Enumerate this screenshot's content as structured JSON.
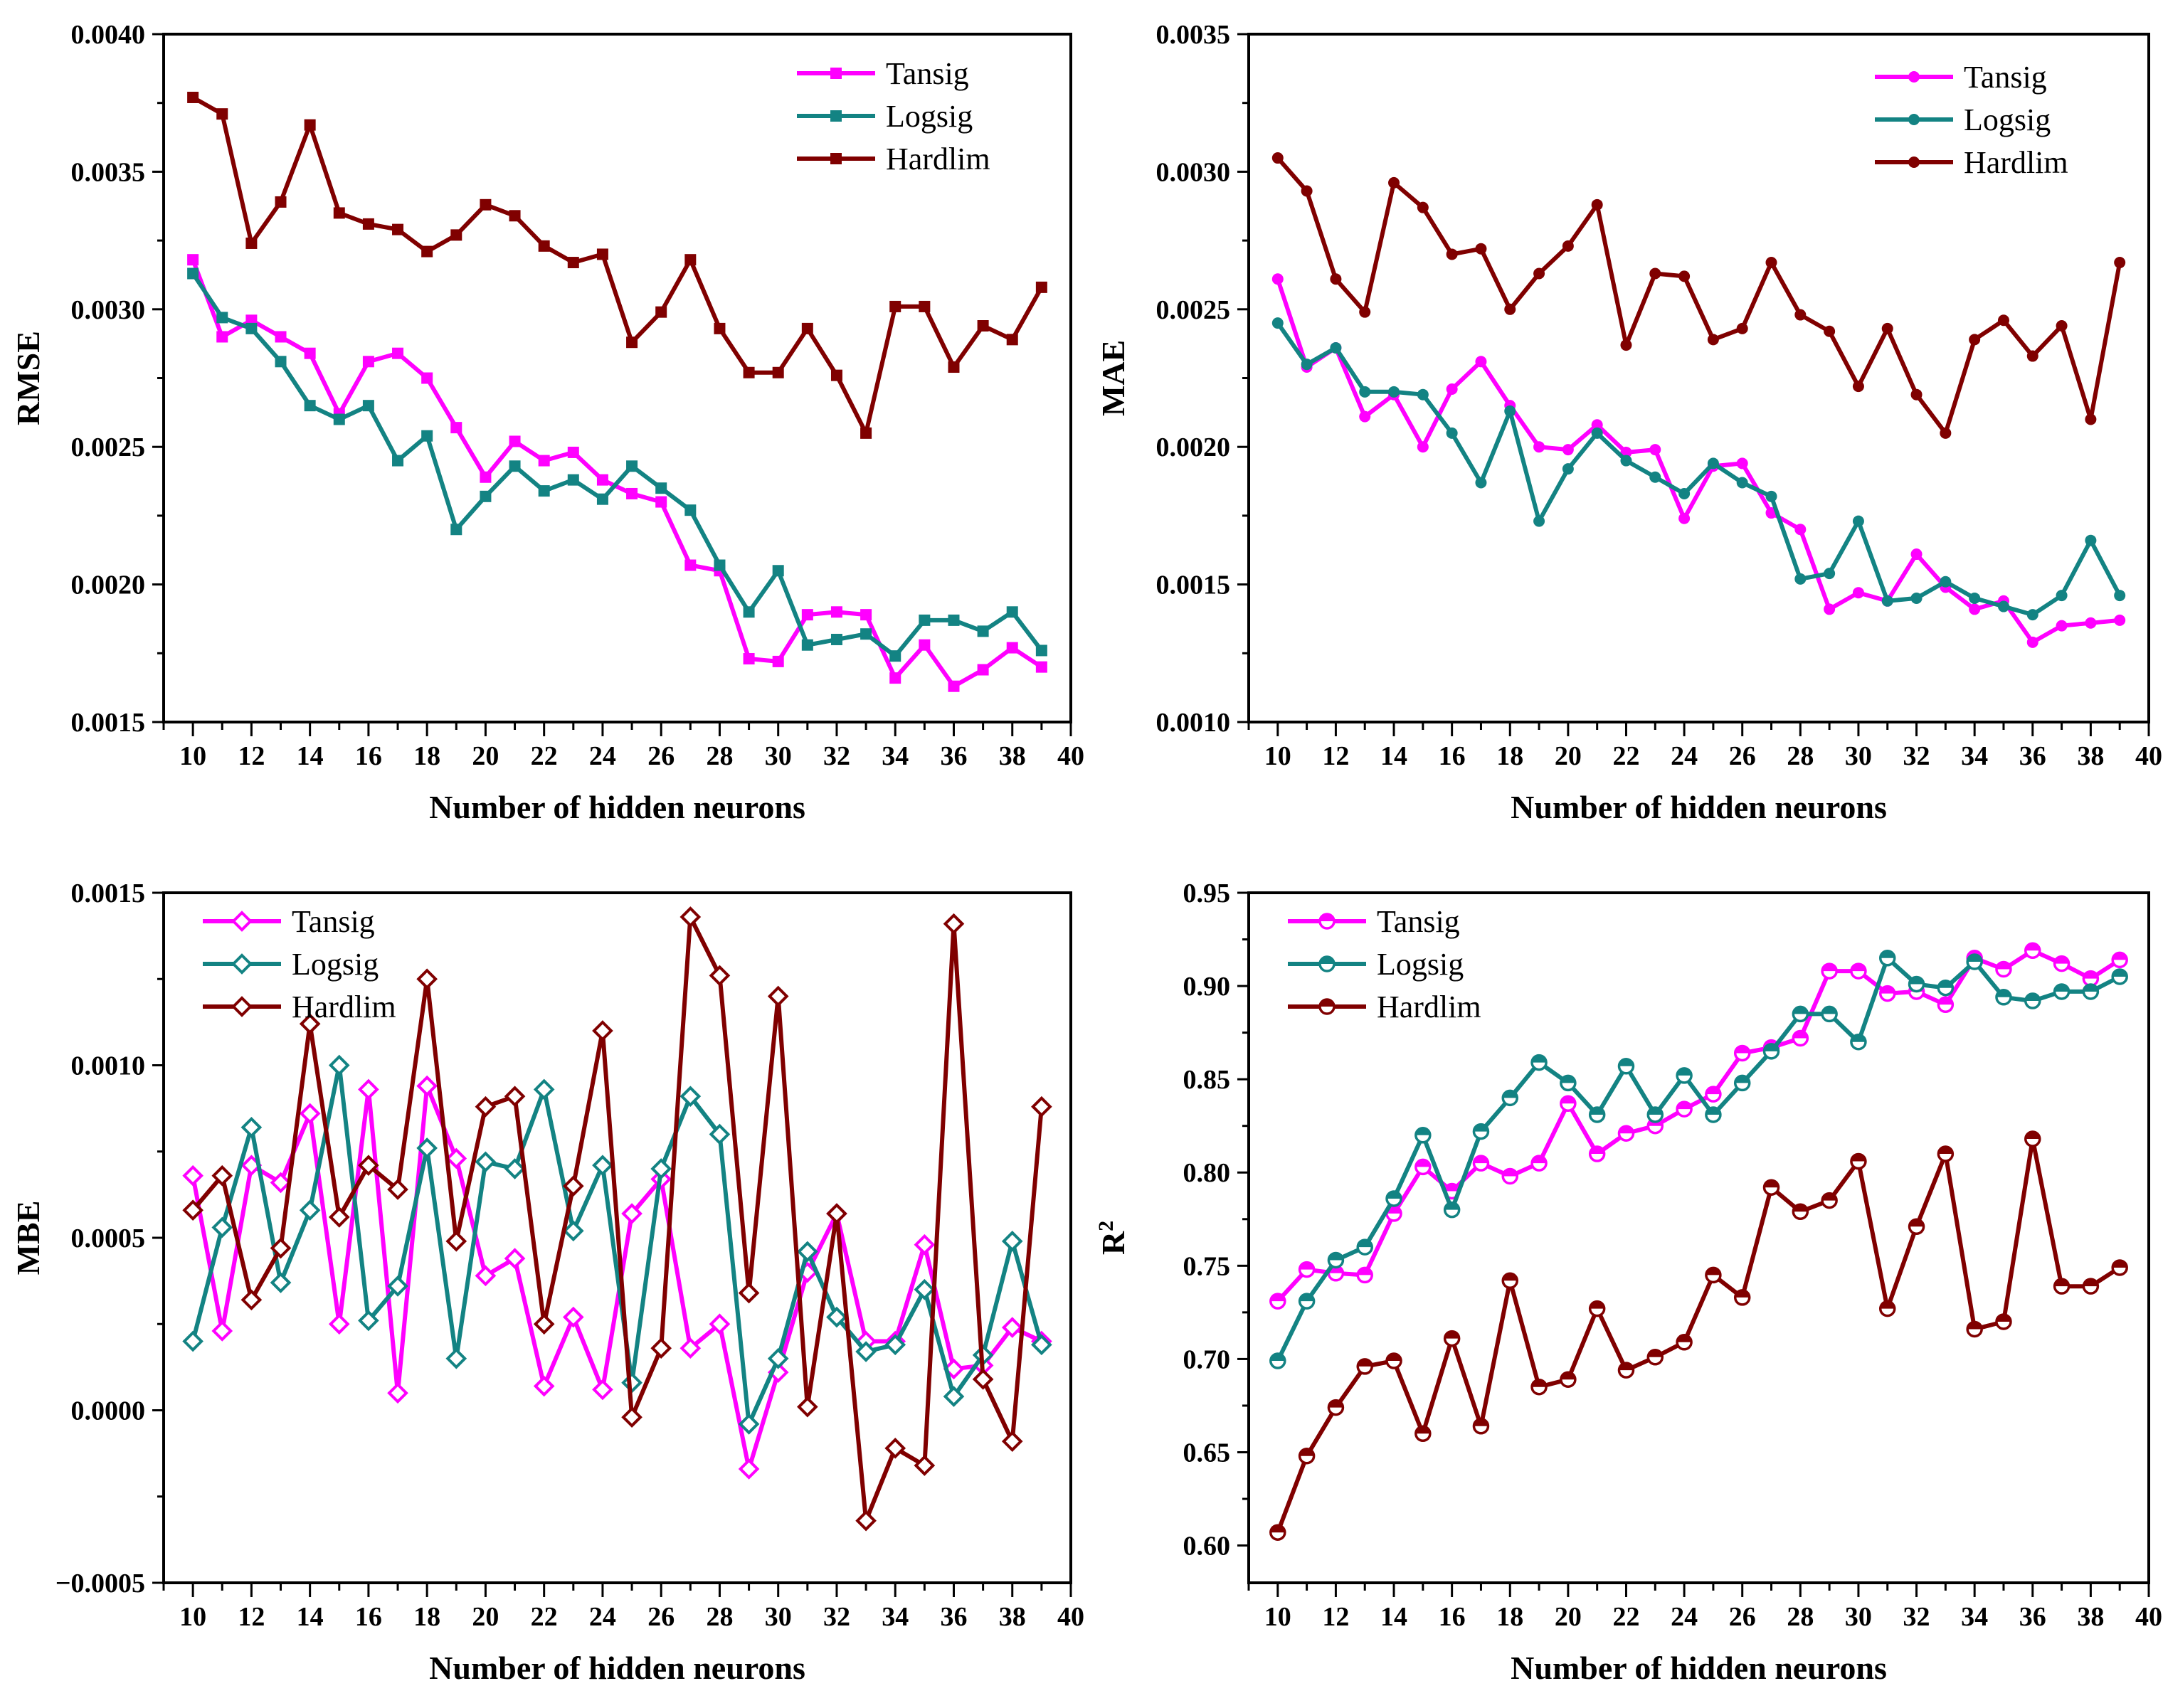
{
  "chart_data": [
    {
      "type": "line",
      "id": "rmse",
      "title": "",
      "xlabel": "Number of hidden neurons",
      "ylabel": "RMSE",
      "ylabel_sup": "",
      "xlim": [
        9,
        40
      ],
      "ylim": [
        0.0015,
        0.004
      ],
      "xticks": [
        10,
        12,
        14,
        16,
        18,
        20,
        22,
        24,
        26,
        28,
        30,
        32,
        34,
        36,
        38,
        40
      ],
      "yticks": [
        {
          "value": 0.0015,
          "label": "0.0015"
        },
        {
          "value": 0.002,
          "label": "0.0020"
        },
        {
          "value": 0.0025,
          "label": "0.0025"
        },
        {
          "value": 0.003,
          "label": "0.0030"
        },
        {
          "value": 0.0035,
          "label": "0.0035"
        },
        {
          "value": 0.004,
          "label": "0.0040"
        }
      ],
      "marker": "square",
      "legend_position": "top-right",
      "x": [
        10,
        11,
        12,
        13,
        14,
        15,
        16,
        17,
        18,
        19,
        20,
        21,
        22,
        23,
        24,
        25,
        26,
        27,
        28,
        29,
        30,
        31,
        32,
        33,
        34,
        35,
        36,
        37,
        38,
        39
      ],
      "series": [
        {
          "name": "Tansig",
          "color": "#ff00ff",
          "values": [
            0.00318,
            0.0029,
            0.00296,
            0.0029,
            0.00284,
            0.00262,
            0.00281,
            0.00284,
            0.00275,
            0.00257,
            0.00239,
            0.00252,
            0.00245,
            0.00248,
            0.00238,
            0.00233,
            0.0023,
            0.00207,
            0.00205,
            0.00173,
            0.00172,
            0.00189,
            0.0019,
            0.00189,
            0.00166,
            0.00178,
            0.00163,
            0.00169,
            0.00177,
            0.0017
          ]
        },
        {
          "name": "Logsig",
          "color": "#138383",
          "values": [
            0.00313,
            0.00297,
            0.00293,
            0.00281,
            0.00265,
            0.0026,
            0.00265,
            0.00245,
            0.00254,
            0.0022,
            0.00232,
            0.00243,
            0.00234,
            0.00238,
            0.00231,
            0.00243,
            0.00235,
            0.00227,
            0.00207,
            0.0019,
            0.00205,
            0.00178,
            0.0018,
            0.00182,
            0.00174,
            0.00187,
            0.00187,
            0.00183,
            0.0019,
            0.00176
          ]
        },
        {
          "name": "Hardlim",
          "color": "#800000",
          "values": [
            0.00377,
            0.00371,
            0.00324,
            0.00339,
            0.00367,
            0.00335,
            0.00331,
            0.00329,
            0.00321,
            0.00327,
            0.00338,
            0.00334,
            0.00323,
            0.00317,
            0.0032,
            0.00288,
            0.00299,
            0.00318,
            0.00293,
            0.00277,
            0.00277,
            0.00293,
            0.00276,
            0.00255,
            0.00301,
            0.00301,
            0.00279,
            0.00294,
            0.00289,
            0.00308
          ]
        }
      ]
    },
    {
      "type": "line",
      "id": "mae",
      "title": "",
      "xlabel": "Number of hidden neurons",
      "ylabel": "MAE",
      "ylabel_sup": "",
      "xlim": [
        9,
        40
      ],
      "ylim": [
        0.001,
        0.0035
      ],
      "xticks": [
        10,
        12,
        14,
        16,
        18,
        20,
        22,
        24,
        26,
        28,
        30,
        32,
        34,
        36,
        38,
        40
      ],
      "yticks": [
        {
          "value": 0.001,
          "label": "0.0010"
        },
        {
          "value": 0.0015,
          "label": "0.0015"
        },
        {
          "value": 0.002,
          "label": "0.0020"
        },
        {
          "value": 0.0025,
          "label": "0.0025"
        },
        {
          "value": 0.003,
          "label": "0.0030"
        },
        {
          "value": 0.0035,
          "label": "0.0035"
        }
      ],
      "marker": "circle",
      "legend_position": "top-right",
      "x": [
        10,
        11,
        12,
        13,
        14,
        15,
        16,
        17,
        18,
        19,
        20,
        21,
        22,
        23,
        24,
        25,
        26,
        27,
        28,
        29,
        30,
        31,
        32,
        33,
        34,
        35,
        36,
        37,
        38,
        39
      ],
      "series": [
        {
          "name": "Tansig",
          "color": "#ff00ff",
          "values": [
            0.00261,
            0.00229,
            0.00236,
            0.00211,
            0.00219,
            0.002,
            0.00221,
            0.00231,
            0.00215,
            0.002,
            0.00199,
            0.00208,
            0.00198,
            0.00199,
            0.00174,
            0.00193,
            0.00194,
            0.00176,
            0.0017,
            0.00141,
            0.00147,
            0.00144,
            0.00161,
            0.00149,
            0.00141,
            0.00144,
            0.00129,
            0.00135,
            0.00136,
            0.00137
          ]
        },
        {
          "name": "Logsig",
          "color": "#138383",
          "values": [
            0.00245,
            0.0023,
            0.00236,
            0.0022,
            0.0022,
            0.00219,
            0.00205,
            0.00187,
            0.00213,
            0.00173,
            0.00192,
            0.00205,
            0.00195,
            0.00189,
            0.00183,
            0.00194,
            0.00187,
            0.00182,
            0.00152,
            0.00154,
            0.00173,
            0.00144,
            0.00145,
            0.00151,
            0.00145,
            0.00142,
            0.00139,
            0.00146,
            0.00166,
            0.00146
          ]
        },
        {
          "name": "Hardlim",
          "color": "#800000",
          "values": [
            0.00305,
            0.00293,
            0.00261,
            0.00249,
            0.00296,
            0.00287,
            0.0027,
            0.00272,
            0.0025,
            0.00263,
            0.00273,
            0.00288,
            0.00237,
            0.00263,
            0.00262,
            0.00239,
            0.00243,
            0.00267,
            0.00248,
            0.00242,
            0.00222,
            0.00243,
            0.00219,
            0.00205,
            0.00239,
            0.00246,
            0.00233,
            0.00244,
            0.0021,
            0.00267
          ]
        }
      ]
    },
    {
      "type": "line",
      "id": "mbe",
      "title": "",
      "xlabel": "Number of hidden neurons",
      "ylabel": "MBE",
      "ylabel_sup": "",
      "xlim": [
        9,
        40
      ],
      "ylim": [
        -0.0005,
        0.0015
      ],
      "xticks": [
        10,
        12,
        14,
        16,
        18,
        20,
        22,
        24,
        26,
        28,
        30,
        32,
        34,
        36,
        38,
        40
      ],
      "yticks": [
        {
          "value": -0.0005,
          "label": "−0.0005"
        },
        {
          "value": 0,
          "label": "0.0000"
        },
        {
          "value": 0.0005,
          "label": "0.0005"
        },
        {
          "value": 0.001,
          "label": "0.0010"
        },
        {
          "value": 0.0015,
          "label": "0.0015"
        }
      ],
      "marker": "diamond",
      "legend_position": "top-left",
      "x": [
        10,
        11,
        12,
        13,
        14,
        15,
        16,
        17,
        18,
        19,
        20,
        21,
        22,
        23,
        24,
        25,
        26,
        27,
        28,
        29,
        30,
        31,
        32,
        33,
        34,
        35,
        36,
        37,
        38,
        39
      ],
      "series": [
        {
          "name": "Tansig",
          "color": "#ff00ff",
          "values": [
            0.00068,
            0.00023,
            0.00071,
            0.00066,
            0.00086,
            0.00025,
            0.00093,
            5e-05,
            0.00094,
            0.00073,
            0.00039,
            0.00044,
            7e-05,
            0.00027,
            6e-05,
            0.00057,
            0.00067,
            0.00018,
            0.00025,
            -0.00017,
            0.00011,
            0.0004,
            0.00057,
            0.0002,
            0.0002,
            0.00048,
            0.00012,
            0.00013,
            0.00024,
            0.0002
          ]
        },
        {
          "name": "Logsig",
          "color": "#138383",
          "values": [
            0.0002,
            0.00053,
            0.00082,
            0.00037,
            0.00058,
            0.001,
            0.00026,
            0.00036,
            0.00076,
            0.00015,
            0.00072,
            0.0007,
            0.00093,
            0.00052,
            0.00071,
            8e-05,
            0.0007,
            0.00091,
            0.0008,
            -4e-05,
            0.00015,
            0.00046,
            0.00027,
            0.00017,
            0.00019,
            0.00035,
            4e-05,
            0.00016,
            0.00049,
            0.00019
          ]
        },
        {
          "name": "Hardlim",
          "color": "#800000",
          "values": [
            0.00058,
            0.00068,
            0.00032,
            0.00047,
            0.00112,
            0.00056,
            0.00071,
            0.00064,
            0.00125,
            0.00049,
            0.00088,
            0.00091,
            0.00025,
            0.00065,
            0.0011,
            -2e-05,
            0.00018,
            0.00143,
            0.00126,
            0.00034,
            0.0012,
            1e-05,
            0.00057,
            -0.00032,
            -0.00011,
            -0.00016,
            0.00141,
            9e-05,
            -9e-05,
            0.00088
          ]
        }
      ]
    },
    {
      "type": "line",
      "id": "r2",
      "title": "",
      "xlabel": "Number of hidden neurons",
      "ylabel": "R",
      "ylabel_sup": "2",
      "xlim": [
        9,
        40
      ],
      "ylim": [
        0.58,
        0.95
      ],
      "xticks": [
        10,
        12,
        14,
        16,
        18,
        20,
        22,
        24,
        26,
        28,
        30,
        32,
        34,
        36,
        38,
        40
      ],
      "yticks": [
        {
          "value": 0.6,
          "label": "0.60"
        },
        {
          "value": 0.65,
          "label": "0.65"
        },
        {
          "value": 0.7,
          "label": "0.70"
        },
        {
          "value": 0.75,
          "label": "0.75"
        },
        {
          "value": 0.8,
          "label": "0.80"
        },
        {
          "value": 0.85,
          "label": "0.85"
        },
        {
          "value": 0.9,
          "label": "0.90"
        },
        {
          "value": 0.95,
          "label": "0.95"
        }
      ],
      "marker": "halfcircle",
      "legend_position": "top-left",
      "x": [
        10,
        11,
        12,
        13,
        14,
        15,
        16,
        17,
        18,
        19,
        20,
        21,
        22,
        23,
        24,
        25,
        26,
        27,
        28,
        29,
        30,
        31,
        32,
        33,
        34,
        35,
        36,
        37,
        38,
        39
      ],
      "series": [
        {
          "name": "Tansig",
          "color": "#ff00ff",
          "values": [
            0.731,
            0.748,
            0.746,
            0.745,
            0.778,
            0.803,
            0.79,
            0.805,
            0.798,
            0.805,
            0.837,
            0.81,
            0.821,
            0.825,
            0.834,
            0.842,
            0.864,
            0.867,
            0.872,
            0.908,
            0.908,
            0.896,
            0.897,
            0.89,
            0.915,
            0.909,
            0.919,
            0.912,
            0.904,
            0.914
          ]
        },
        {
          "name": "Logsig",
          "color": "#138383",
          "values": [
            0.699,
            0.731,
            0.753,
            0.76,
            0.786,
            0.82,
            0.78,
            0.822,
            0.84,
            0.859,
            0.848,
            0.831,
            0.857,
            0.831,
            0.852,
            0.831,
            0.848,
            0.865,
            0.885,
            0.885,
            0.87,
            0.915,
            0.901,
            0.899,
            0.913,
            0.894,
            0.892,
            0.897,
            0.897,
            0.905
          ]
        },
        {
          "name": "Hardlim",
          "color": "#800000",
          "values": [
            0.607,
            0.648,
            0.674,
            0.696,
            0.699,
            0.66,
            0.711,
            0.664,
            0.742,
            0.685,
            0.689,
            0.727,
            0.694,
            0.701,
            0.709,
            0.745,
            0.733,
            0.792,
            0.779,
            0.785,
            0.806,
            0.727,
            0.771,
            0.81,
            0.716,
            0.72,
            0.818,
            0.739,
            0.739,
            0.749
          ]
        }
      ]
    }
  ]
}
